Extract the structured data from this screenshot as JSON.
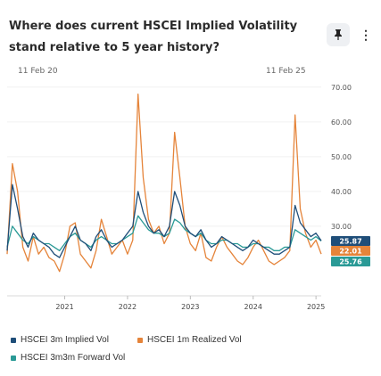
{
  "header": {
    "title": "Where does current HSCEI Implied Volatility stand relative to 5 year history?"
  },
  "toolbar": {
    "pin_icon": "pin-icon",
    "more_icon": "more-vertical-icon"
  },
  "colors": {
    "implied": "#1f4e79",
    "realized": "#e5843a",
    "forward": "#2a9a96"
  },
  "chart_data": {
    "type": "line",
    "range_start_label": "11 Feb 20",
    "range_end_label": "11 Feb 25",
    "x_ticks": [
      "2021",
      "2022",
      "2023",
      "2024",
      "2025"
    ],
    "y_ticks": [
      "30.00",
      "40.00",
      "50.00",
      "60.00",
      "70.00"
    ],
    "ylim": [
      10,
      72
    ],
    "x": [
      "2020-02",
      "2020-03",
      "2020-04",
      "2020-05",
      "2020-06",
      "2020-07",
      "2020-08",
      "2020-09",
      "2020-10",
      "2020-11",
      "2020-12",
      "2021-01",
      "2021-02",
      "2021-03",
      "2021-04",
      "2021-05",
      "2021-06",
      "2021-07",
      "2021-08",
      "2021-09",
      "2021-10",
      "2021-11",
      "2021-12",
      "2022-01",
      "2022-02",
      "2022-03",
      "2022-04",
      "2022-05",
      "2022-06",
      "2022-07",
      "2022-08",
      "2022-09",
      "2022-10",
      "2022-11",
      "2022-12",
      "2023-01",
      "2023-02",
      "2023-03",
      "2023-04",
      "2023-05",
      "2023-06",
      "2023-07",
      "2023-08",
      "2023-09",
      "2023-10",
      "2023-11",
      "2023-12",
      "2024-01",
      "2024-02",
      "2024-03",
      "2024-04",
      "2024-05",
      "2024-06",
      "2024-07",
      "2024-08",
      "2024-09",
      "2024-10",
      "2024-11",
      "2024-12",
      "2025-01",
      "2025-02"
    ],
    "series": [
      {
        "name": "HSCEI 3m Implied Vol",
        "color": "#1f4e79",
        "last_value": "25.87",
        "values": [
          23,
          42,
          35,
          27,
          24,
          28,
          26,
          25,
          24,
          22,
          21,
          24,
          27,
          30,
          26,
          25,
          23,
          27,
          29,
          26,
          24,
          25,
          26,
          28,
          30,
          40,
          34,
          30,
          28,
          29,
          27,
          30,
          40,
          36,
          30,
          28,
          27,
          29,
          26,
          24,
          25,
          27,
          26,
          25,
          24,
          23,
          24,
          26,
          25,
          24,
          23,
          22,
          22,
          23,
          24,
          36,
          31,
          29,
          27,
          28,
          25.87
        ]
      },
      {
        "name": "HSCEI 1m Realized Vol",
        "color": "#e5843a",
        "last_value": "22.01",
        "values": [
          22,
          48,
          40,
          24,
          20,
          27,
          22,
          24,
          21,
          20,
          17,
          22,
          30,
          31,
          22,
          20,
          18,
          23,
          32,
          27,
          22,
          24,
          26,
          22,
          26,
          68,
          44,
          32,
          28,
          30,
          25,
          28,
          57,
          44,
          30,
          25,
          23,
          28,
          21,
          20,
          24,
          27,
          24,
          22,
          20,
          19,
          21,
          24,
          26,
          23,
          20,
          19,
          20,
          21,
          23,
          62,
          35,
          28,
          24,
          26,
          22.01
        ]
      },
      {
        "name": "HSCEI 3m3m Forward Vol",
        "color": "#2a9a96",
        "last_value": "25.76",
        "values": [
          24,
          30,
          28,
          26,
          25,
          27,
          26,
          25,
          25,
          24,
          23,
          25,
          27,
          28,
          26,
          25,
          24,
          26,
          27,
          26,
          25,
          25,
          26,
          27,
          28,
          33,
          31,
          29,
          28,
          28,
          27,
          28,
          32,
          31,
          29,
          28,
          27,
          28,
          26,
          25,
          25,
          26,
          26,
          25,
          25,
          24,
          24,
          25,
          25,
          24,
          24,
          23,
          23,
          24,
          24,
          29,
          28,
          27,
          26,
          27,
          25.76
        ]
      }
    ]
  }
}
